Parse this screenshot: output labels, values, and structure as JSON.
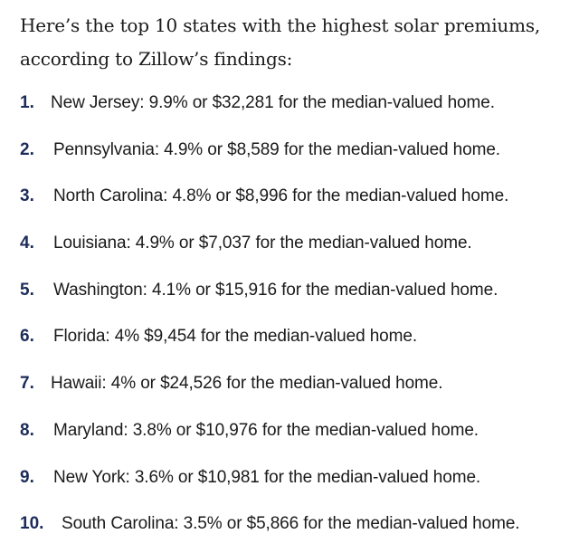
{
  "intro": {
    "line1": "Here’s the top 10 states with the highest solar premiums,",
    "line2": "according to Zillow’s findings:"
  },
  "items": [
    {
      "number": "1.",
      "text": "New Jersey: 9.9% or $32,281 for the median-valued home."
    },
    {
      "number": "2.",
      "text": "Pennsylvania: 4.9% or $8,589 for the median-valued home."
    },
    {
      "number": "3.",
      "text": "North Carolina: 4.8% or $8,996 for the median-valued home."
    },
    {
      "number": "4.",
      "text": "Louisiana: 4.9% or $7,037 for the median-valued home."
    },
    {
      "number": "5.",
      "text": "Washington: 4.1% or $15,916 for the median-valued home."
    },
    {
      "number": "6.",
      "text": "Florida: 4% $9,454 for the median-valued home."
    },
    {
      "number": "7.",
      "text": "Hawaii: 4% or $24,526 for the median-valued home."
    },
    {
      "number": "8.",
      "text": "Maryland: 3.8% or $10,976 for the median-valued home."
    },
    {
      "number": "9.",
      "text": "New York: 3.6% or $10,981 for the median-valued home."
    },
    {
      "number": "10.",
      "text": "South Carolina: 3.5% or $5,866 for the median-valued home."
    }
  ],
  "colors": {
    "number": "#1c2b5a",
    "text": "#1a1a1a",
    "background": "#ffffff"
  }
}
